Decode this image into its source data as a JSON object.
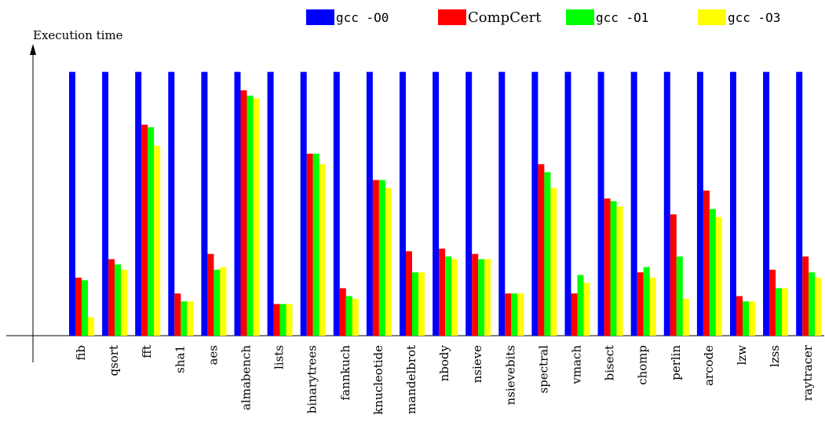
{
  "chart_data": {
    "type": "bar",
    "ylabel": "Execution time",
    "categories": [
      "fib",
      "qsort",
      "fft",
      "sha1",
      "aes",
      "almabench",
      "lists",
      "binarytrees",
      "fannkuch",
      "knucleotide",
      "mandelbrot",
      "nbody",
      "nsieve",
      "nsievebits",
      "spectral",
      "vmach",
      "bisect",
      "chomp",
      "perlin",
      "arcode",
      "lzw",
      "lzss",
      "raytracer"
    ],
    "series": [
      {
        "name": "gcc -O0",
        "color": "#0000ff",
        "values": [
          1,
          1,
          1,
          1,
          1,
          1,
          1,
          1,
          1,
          1,
          1,
          1,
          1,
          1,
          1,
          1,
          1,
          1,
          1,
          1,
          1,
          1,
          1
        ]
      },
      {
        "name": "CompCert",
        "color": "#ff0000",
        "values": [
          0.22,
          0.29,
          0.8,
          0.16,
          0.31,
          0.93,
          0.12,
          0.69,
          0.18,
          0.59,
          0.32,
          0.33,
          0.31,
          0.16,
          0.65,
          0.16,
          0.52,
          0.24,
          0.46,
          0.55,
          0.15,
          0.25,
          0.3
        ]
      },
      {
        "name": "gcc -O1",
        "color": "#00ff00",
        "values": [
          0.21,
          0.27,
          0.79,
          0.13,
          0.25,
          0.91,
          0.12,
          0.69,
          0.15,
          0.59,
          0.24,
          0.3,
          0.29,
          0.16,
          0.62,
          0.23,
          0.51,
          0.26,
          0.3,
          0.48,
          0.13,
          0.18,
          0.24
        ]
      },
      {
        "name": "gcc -O3",
        "color": "#ffff00",
        "values": [
          0.07,
          0.25,
          0.72,
          0.13,
          0.26,
          0.9,
          0.12,
          0.65,
          0.14,
          0.56,
          0.24,
          0.29,
          0.29,
          0.16,
          0.56,
          0.2,
          0.49,
          0.22,
          0.14,
          0.45,
          0.13,
          0.18,
          0.22
        ]
      }
    ],
    "ylim": [
      0,
      1.1
    ],
    "legend": "top-right"
  }
}
